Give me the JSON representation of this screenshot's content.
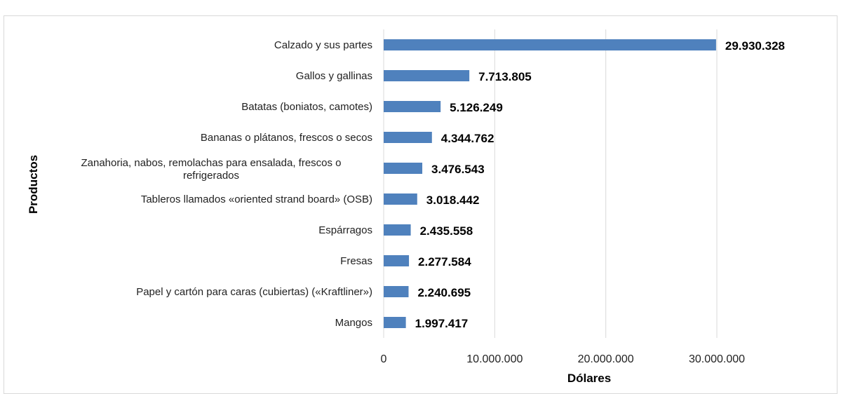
{
  "chart_data": {
    "type": "bar",
    "orientation": "horizontal",
    "title": "",
    "xlabel": "Dólares",
    "ylabel": "Productos",
    "categories": [
      "Calzado y sus partes",
      "Gallos y gallinas",
      "Batatas (boniatos, camotes)",
      "Bananas o plátanos, frescos o secos",
      [
        "Zanahoria, nabos, remolachas para ensalada, frescos o",
        "refrigerados"
      ],
      "Tableros llamados «oriented strand board» (OSB)",
      "Espárragos",
      "Fresas",
      "Papel y cartón para caras (cubiertas) («Kraftliner»)",
      "Mangos"
    ],
    "values": [
      29930328,
      7713805,
      5126249,
      4344762,
      3476543,
      3018442,
      2435558,
      2277584,
      2240695,
      1997417
    ],
    "value_labels": [
      "29.930.328",
      "7.713.805",
      "5.126.249",
      "4.344.762",
      "3.476.543",
      "3.018.442",
      "2.435.558",
      "2.277.584",
      "2.240.695",
      "1.997.417"
    ],
    "xlim": [
      0,
      40000000
    ],
    "xticks": [
      0,
      10000000,
      20000000,
      30000000
    ],
    "xtick_labels": [
      "0",
      "10.000.000",
      "20.000.000",
      "30.000.000"
    ],
    "grid": "vertical",
    "legend": "none",
    "bar_color": "#4f81bd",
    "grid_color": "#d9d9d9"
  }
}
